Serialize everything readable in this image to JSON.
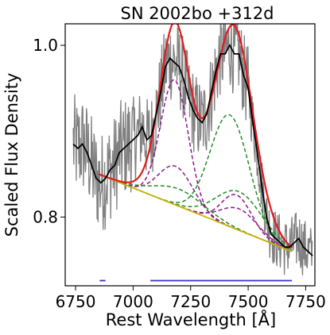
{
  "chart_data": {
    "type": "line",
    "title": "SN 2002bo  +312d",
    "xlabel": "Rest Wavelength [Å]",
    "ylabel": "Scaled Flux Density",
    "xlim": [
      6705,
      7790
    ],
    "ylim": [
      0.72,
      1.025
    ],
    "xticks": [
      6750,
      7000,
      7250,
      7500,
      7750
    ],
    "yticks": [
      0.8,
      1.0
    ],
    "ytick_labels": [
      "0.8",
      "1.0"
    ],
    "grid": false,
    "legend": "none",
    "colors": {
      "raw": "#808080",
      "smoothed": "#000000",
      "fit": "#e41a1c",
      "purple_components": "#8b1a8b",
      "green_components": "#228b22",
      "continuum": "#c8b400",
      "ranges": "#3333cc"
    },
    "smoothed_spectrum": {
      "x": [
        6740,
        6760,
        6780,
        6800,
        6820,
        6840,
        6860,
        6880,
        6900,
        6920,
        6940,
        6960,
        6980,
        7000,
        7020,
        7040,
        7060,
        7080,
        7100,
        7120,
        7140,
        7160,
        7180,
        7200,
        7220,
        7240,
        7260,
        7280,
        7300,
        7320,
        7340,
        7360,
        7380,
        7400,
        7420,
        7440,
        7460,
        7480,
        7500,
        7520,
        7540,
        7560,
        7580,
        7600,
        7620,
        7640,
        7660,
        7680,
        7700,
        7720,
        7740,
        7760,
        7780
      ],
      "y": [
        0.885,
        0.88,
        0.885,
        0.875,
        0.86,
        0.845,
        0.84,
        0.845,
        0.855,
        0.86,
        0.875,
        0.88,
        0.885,
        0.89,
        0.895,
        0.905,
        0.89,
        0.895,
        0.92,
        0.945,
        0.975,
        0.985,
        0.98,
        0.975,
        0.96,
        0.94,
        0.925,
        0.915,
        0.91,
        0.92,
        0.945,
        0.97,
        0.99,
        0.99,
        1.0,
        0.99,
        0.99,
        0.965,
        0.95,
        0.91,
        0.875,
        0.835,
        0.8,
        0.78,
        0.775,
        0.77,
        0.765,
        0.765,
        0.77,
        0.775,
        0.765,
        0.76,
        0.755
      ]
    },
    "ranges": [
      {
        "x": [
          6855,
          6880
        ],
        "y": 0.726
      },
      {
        "x": [
          7075,
          7690
        ],
        "y": 0.726
      }
    ],
    "fit": {
      "continuum": {
        "x": [
          6850,
          7690
        ],
        "y": [
          0.85,
          0.76
        ]
      },
      "components": [
        {
          "group": "purple",
          "center": 7180,
          "width": 60,
          "amp": 0.145
        },
        {
          "group": "purple",
          "center": 7185,
          "width": 75,
          "amp": 0.045
        },
        {
          "group": "purple",
          "center": 7450,
          "width": 65,
          "amp": 0.04
        },
        {
          "group": "purple",
          "center": 7460,
          "width": 80,
          "amp": 0.025
        },
        {
          "group": "green",
          "center": 7420,
          "width": 85,
          "amp": 0.13
        },
        {
          "group": "green",
          "center": 7460,
          "width": 100,
          "amp": 0.045
        },
        {
          "group": "green",
          "center": 7200,
          "width": 110,
          "amp": 0.02
        }
      ]
    }
  }
}
